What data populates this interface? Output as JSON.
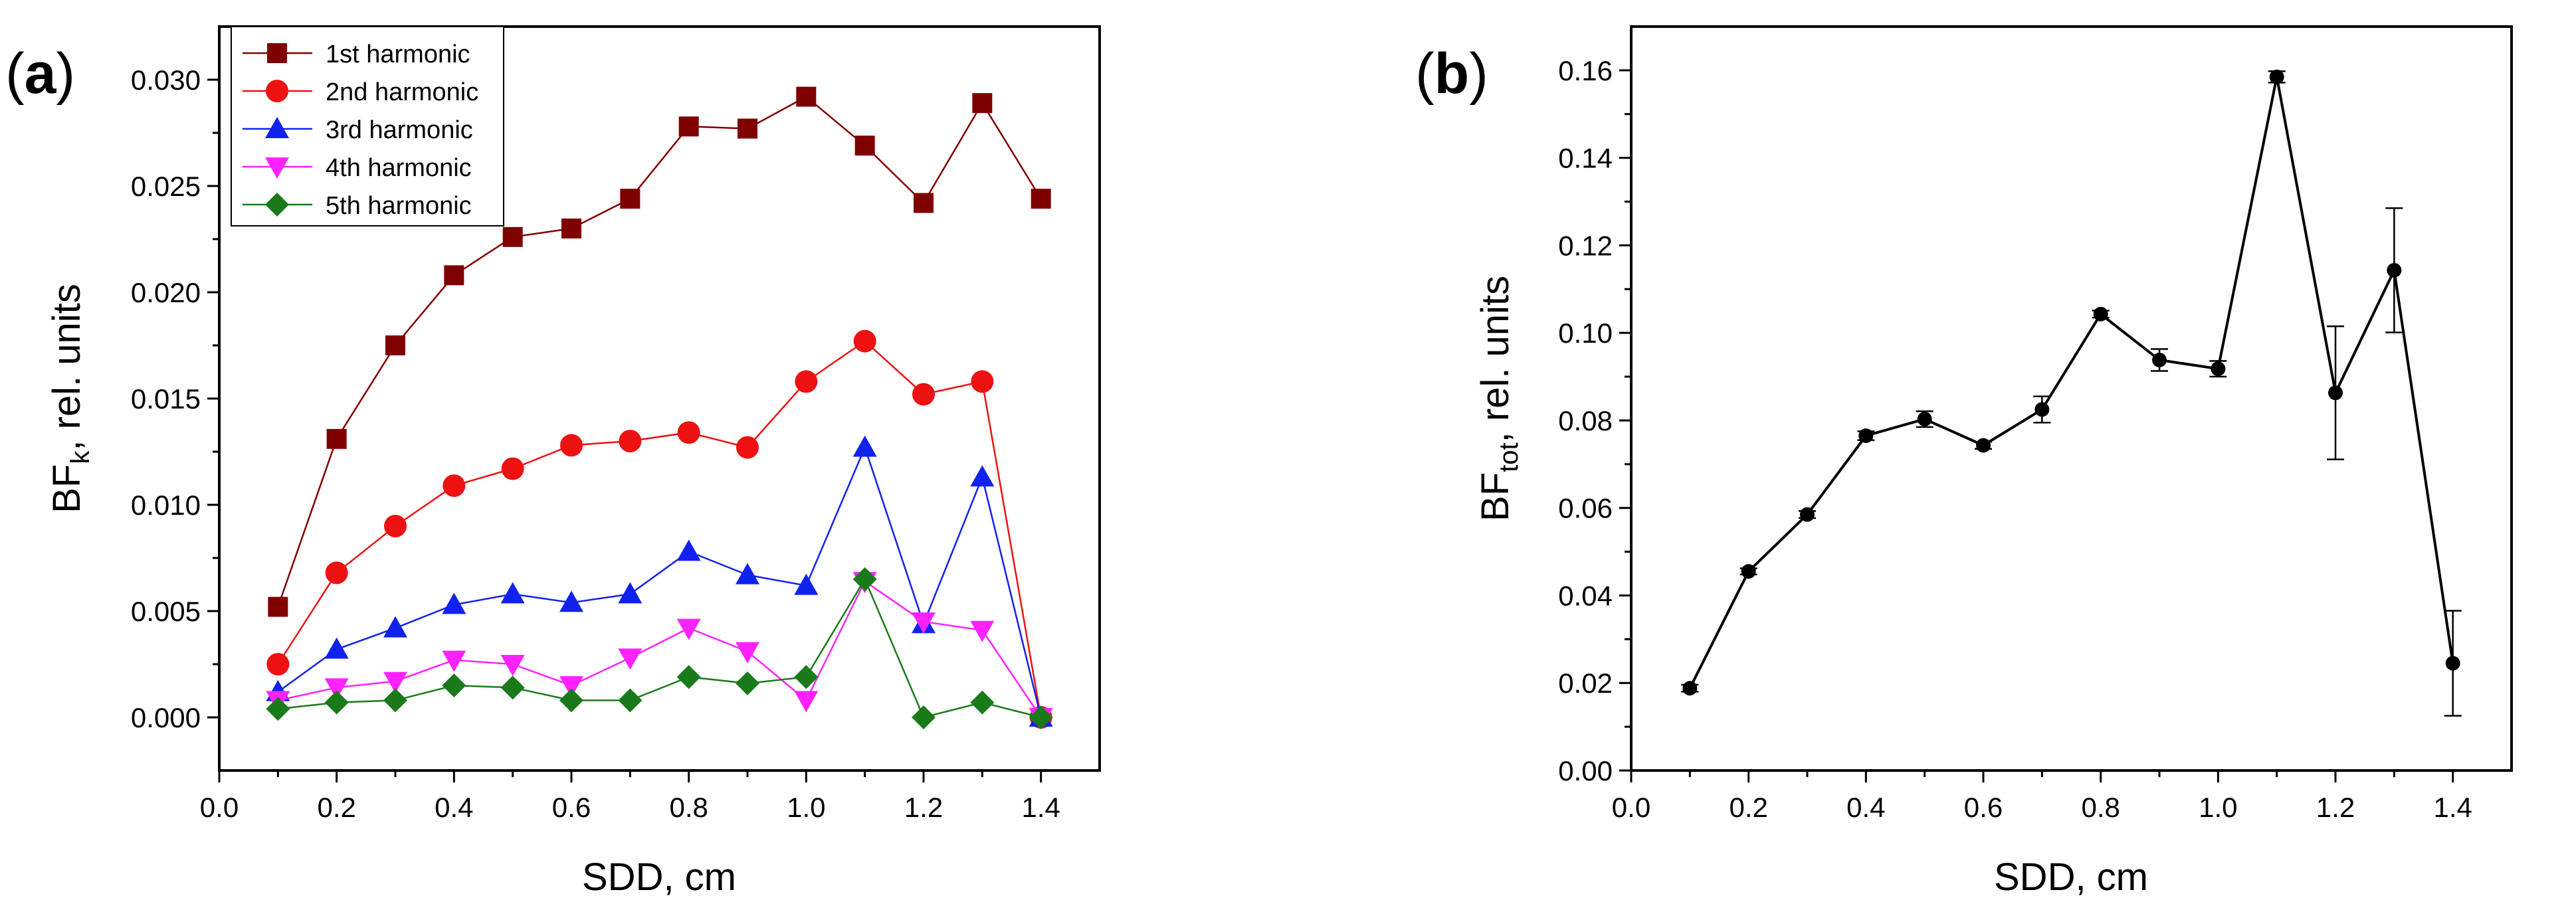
{
  "chart_data": [
    {
      "type": "line",
      "panel_label": "a",
      "panel_label_parts": [
        "(",
        "a",
        ")"
      ],
      "xlabel": "SDD, cm",
      "ylabel": {
        "main": "BF",
        "sub": "k",
        "rest": ", rel. units"
      },
      "xlim": [
        0.0,
        1.5
      ],
      "ylim": [
        -0.0025,
        0.0325
      ],
      "xticks": [
        "0.0",
        "0.2",
        "0.4",
        "0.6",
        "0.8",
        "1.0",
        "1.2",
        "1.4"
      ],
      "yticks": [
        "0.000",
        "0.005",
        "0.010",
        "0.015",
        "0.020",
        "0.025",
        "0.030"
      ],
      "x": [
        0.1,
        0.2,
        0.3,
        0.4,
        0.5,
        0.6,
        0.7,
        0.8,
        0.9,
        1.0,
        1.1,
        1.2,
        1.3,
        1.4
      ],
      "legend_position": "top-left",
      "series": [
        {
          "name": "1st harmonic",
          "color": "#800000",
          "marker": "square",
          "values": [
            0.0052,
            0.0131,
            0.0175,
            0.0208,
            0.0226,
            0.023,
            0.0244,
            0.0278,
            0.0277,
            0.0292,
            0.0269,
            0.0242,
            0.0289,
            0.0244
          ]
        },
        {
          "name": "2nd harmonic",
          "color": "#ee1111",
          "marker": "circle",
          "values": [
            0.0025,
            0.0068,
            0.009,
            0.0109,
            0.0117,
            0.0128,
            0.013,
            0.0134,
            0.0127,
            0.0158,
            0.0177,
            0.0152,
            0.0158,
            0.0
          ]
        },
        {
          "name": "3rd harmonic",
          "color": "#1122ee",
          "marker": "triangle-up",
          "values": [
            0.0012,
            0.0032,
            0.0042,
            0.0053,
            0.0058,
            0.0054,
            0.0058,
            0.0078,
            0.0067,
            0.0062,
            0.0127,
            0.0044,
            0.0113,
            0.0
          ]
        },
        {
          "name": "4th harmonic",
          "color": "#ff22ff",
          "marker": "triangle-down",
          "values": [
            0.0008,
            0.0014,
            0.0017,
            0.0027,
            0.0025,
            0.0015,
            0.0028,
            0.0042,
            0.0031,
            0.0008,
            0.0064,
            0.0045,
            0.0041,
            0.0
          ]
        },
        {
          "name": "5th harmonic",
          "color": "#1a7a1a",
          "marker": "diamond",
          "values": [
            0.0004,
            0.0007,
            0.0008,
            0.0015,
            0.0014,
            0.0008,
            0.0008,
            0.0019,
            0.0016,
            0.0019,
            0.0065,
            0.0,
            0.0007,
            0.0
          ]
        }
      ]
    },
    {
      "type": "line",
      "panel_label": "b",
      "panel_label_parts": [
        "(",
        "b",
        ")"
      ],
      "xlabel": "SDD, cm",
      "ylabel": {
        "main": "BF",
        "sub": "tot",
        "rest": ", rel. units"
      },
      "xlim": [
        0.0,
        1.5
      ],
      "ylim": [
        0.0,
        0.17
      ],
      "xticks": [
        "0.0",
        "0.2",
        "0.4",
        "0.6",
        "0.8",
        "1.0",
        "1.2",
        "1.4"
      ],
      "yticks": [
        "0.00",
        "0.02",
        "0.04",
        "0.06",
        "0.08",
        "0.10",
        "0.12",
        "0.14",
        "0.16"
      ],
      "x": [
        0.1,
        0.2,
        0.3,
        0.4,
        0.5,
        0.6,
        0.7,
        0.8,
        0.9,
        1.0,
        1.1,
        1.2,
        1.3,
        1.4
      ],
      "series": [
        {
          "name": "BFtot",
          "color": "#000000",
          "marker": "circle",
          "values": [
            0.0188,
            0.0455,
            0.0585,
            0.0765,
            0.0803,
            0.0743,
            0.0825,
            0.1043,
            0.0938,
            0.0918,
            0.1585,
            0.0863,
            0.1143,
            0.0245
          ],
          "errors": [
            0.0008,
            0.0007,
            0.0008,
            0.001,
            0.0018,
            0.0008,
            0.003,
            0.0008,
            0.0025,
            0.0018,
            0.0013,
            0.0152,
            0.0142,
            0.012
          ]
        }
      ]
    }
  ]
}
